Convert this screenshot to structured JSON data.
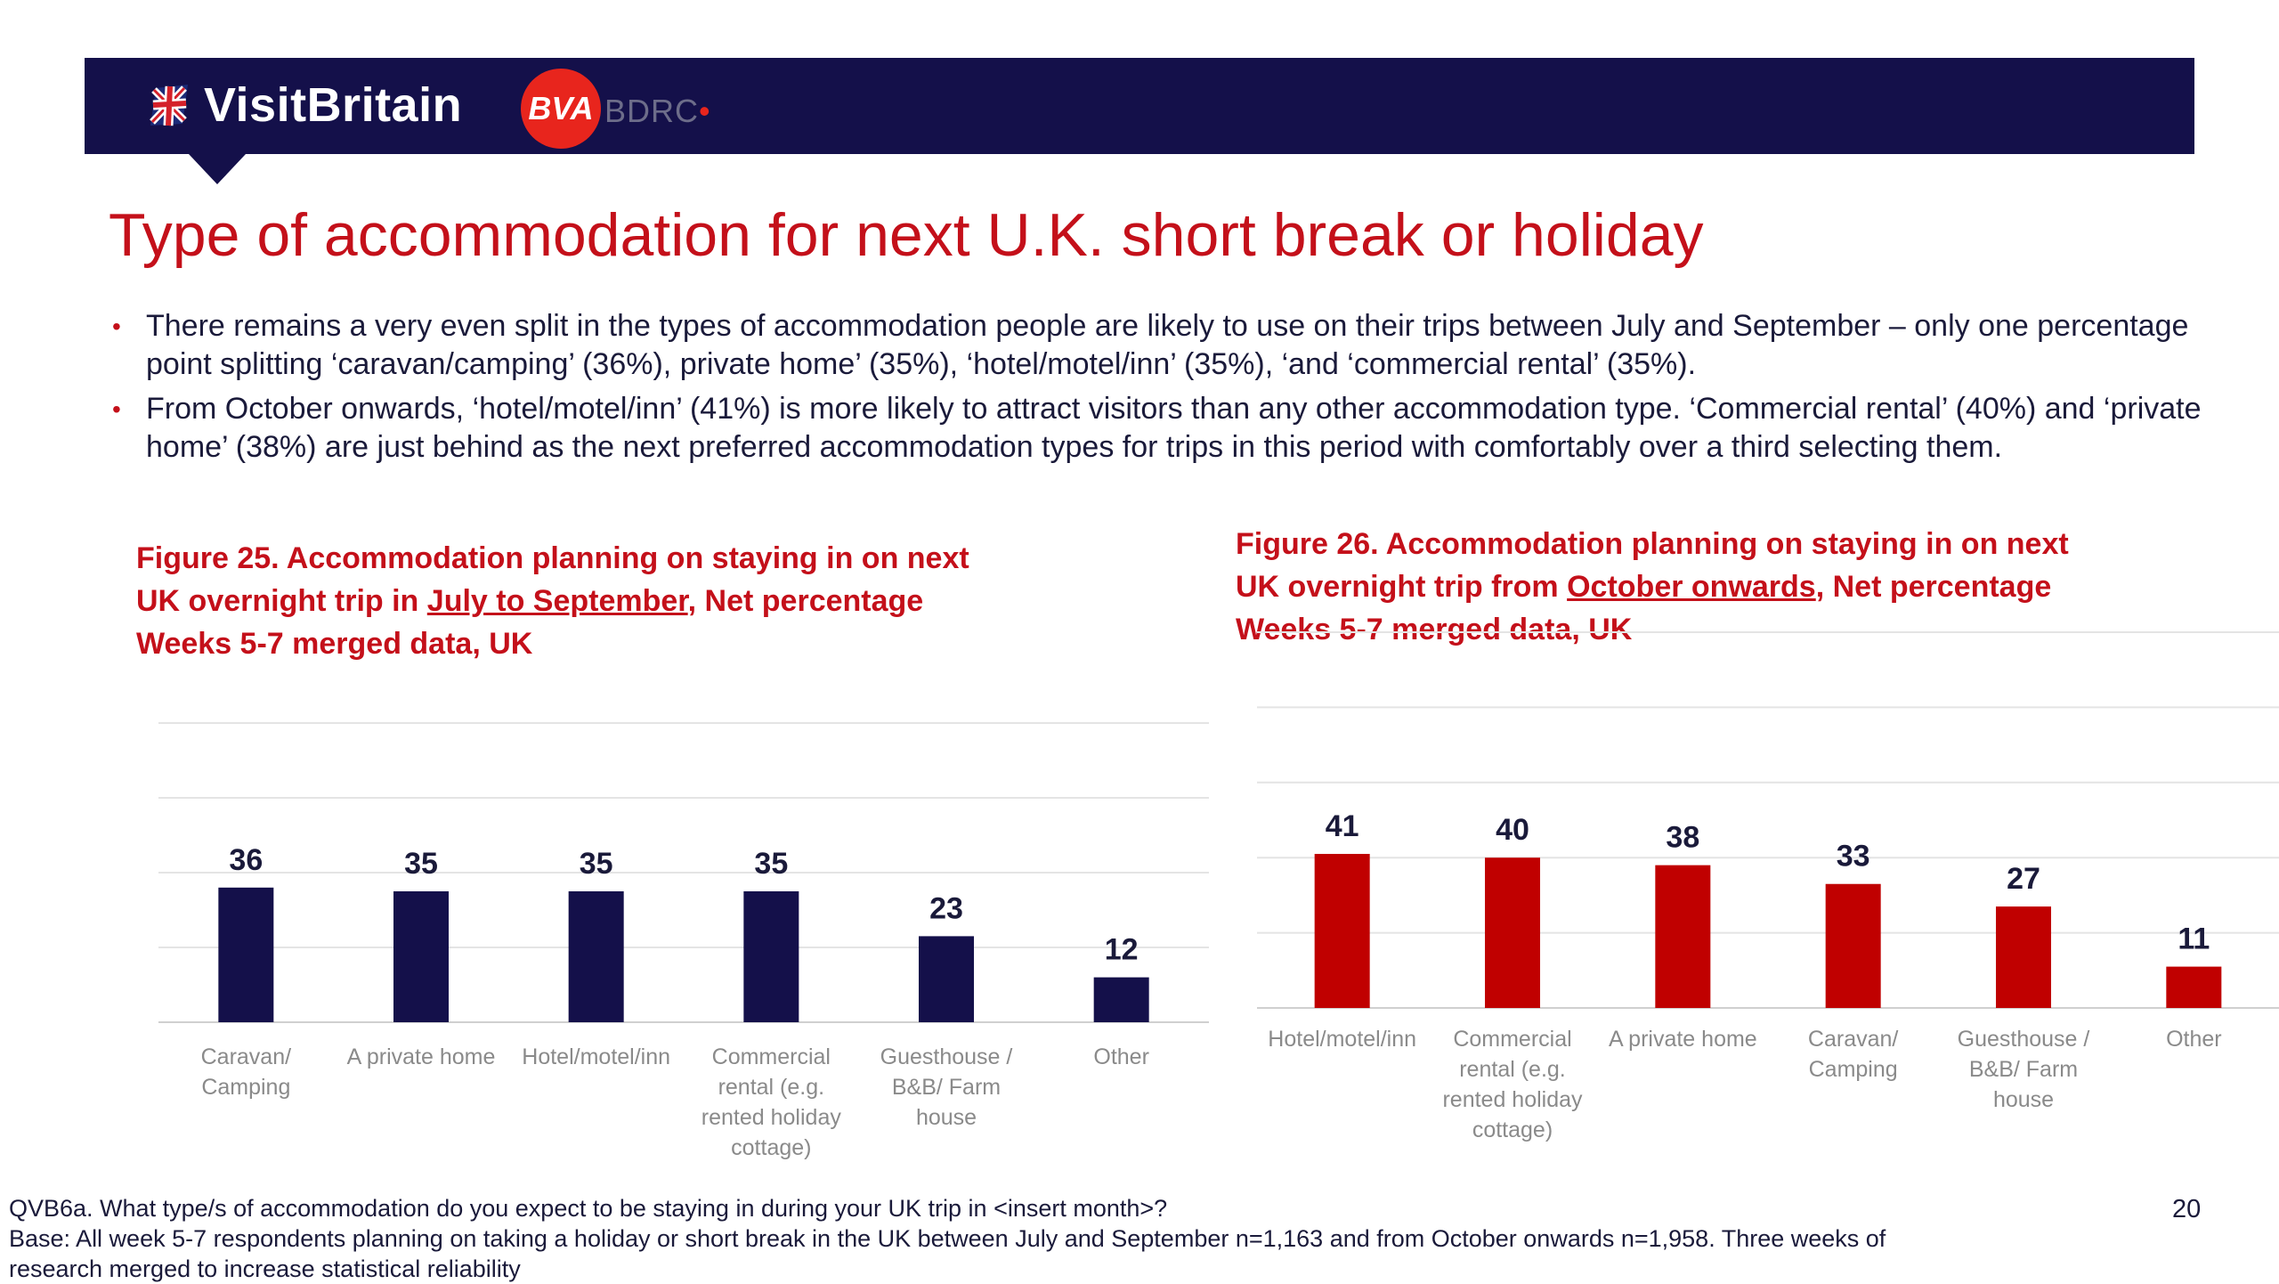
{
  "header": {
    "brand_name": "VisitBritain",
    "partner_logo_mark": "BVA",
    "partner_logo_text": "BDRC",
    "brand_icon": "union-flag-icon",
    "banner_color": "#14104a",
    "accent_color": "#c4101a"
  },
  "title": "Type of accommodation for next U.K. short break or holiday",
  "bullets": [
    "There remains a very even split in the types of accommodation people are likely to use on their trips between July and September – only one percentage point splitting ‘caravan/camping’ (36%), private home’ (35%), ‘hotel/motel/inn’ (35%), ‘and ‘commercial rental’ (35%).",
    "From October onwards, ‘hotel/motel/inn’ (41%) is more likely to attract visitors than any other accommodation type. ‘Commercial rental’ (40%) and ‘private home’ (38%) are just behind as the next preferred accommodation types for trips in this period with comfortably over a third selecting them."
  ],
  "chart_data": [
    {
      "type": "bar",
      "title_line1": "Figure 25. Accommodation planning on staying in on next",
      "title_line2_pre": "UK overnight trip in ",
      "title_line2_u": "July to September",
      "title_line2_post": ", Net percentage",
      "title_line3": "Weeks 5-7 merged data, UK",
      "categories": [
        "Caravan/ Camping",
        "A private home",
        "Hotel/motel/inn",
        "Commercial rental (e.g. rented holiday cottage)",
        "Guesthouse / B&B/ Farm house",
        "Other"
      ],
      "category_lines": [
        [
          "Caravan/",
          "Camping"
        ],
        [
          "A private home"
        ],
        [
          "Hotel/motel/inn"
        ],
        [
          "Commercial",
          "rental (e.g.",
          "rented holiday",
          "cottage)"
        ],
        [
          "Guesthouse /",
          "B&B/ Farm",
          "house"
        ],
        [
          "Other"
        ]
      ],
      "values": [
        36,
        35,
        35,
        35,
        23,
        12
      ],
      "ylim": [
        0,
        80
      ],
      "grid": true,
      "bar_color": "#14104a"
    },
    {
      "type": "bar",
      "title_line1": "Figure 26. Accommodation planning on staying in on next",
      "title_line2_pre": "UK overnight trip from ",
      "title_line2_u": "October onwards",
      "title_line2_post": ", Net percentage",
      "title_line3": "Weeks 5-7 merged data, UK",
      "categories": [
        "Hotel/motel/inn",
        "Commercial rental (e.g. rented holiday cottage)",
        "A private home",
        "Caravan/ Camping",
        "Guesthouse / B&B/ Farm house",
        "Other"
      ],
      "category_lines": [
        [
          "Hotel/motel/inn"
        ],
        [
          "Commercial",
          "rental (e.g.",
          "rented holiday",
          "cottage)"
        ],
        [
          "A private home"
        ],
        [
          "Caravan/",
          "Camping"
        ],
        [
          "Guesthouse /",
          "B&B/ Farm",
          "house"
        ],
        [
          "Other"
        ]
      ],
      "values": [
        41,
        40,
        38,
        33,
        27,
        11
      ],
      "ylim": [
        0,
        100
      ],
      "grid": true,
      "bar_color": "#c00000"
    }
  ],
  "footer": {
    "question": "QVB6a. What type/s of accommodation do you expect to be staying in during your UK trip in <insert month>?",
    "base": "Base: All week 5-7 respondents planning on taking a holiday or short break in the UK between July and September n=1,163 and from October onwards n=1,958. Three weeks of research merged to increase statistical reliability",
    "page_number": "20"
  }
}
